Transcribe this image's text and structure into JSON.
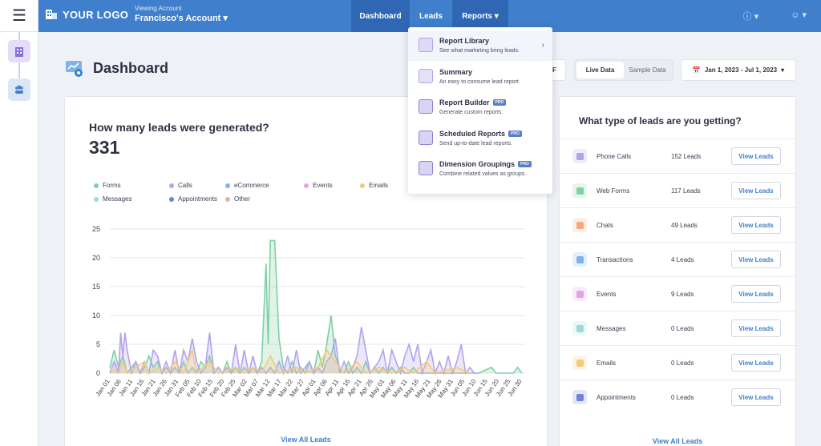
{
  "topbar": {
    "logo_text": "YOUR LOGO",
    "viewing_label": "Viewing Account",
    "account_name": "Francisco's Account",
    "nav": {
      "dashboard": "Dashboard",
      "leads": "Leads",
      "reports": "Reports"
    }
  },
  "page": {
    "title": "Dashboard",
    "pdf_suffix": "F",
    "toggle": {
      "live": "Live Data",
      "sample": "Sample Data"
    },
    "date_range": "Jan 1, 2023 - Jul 1, 2023"
  },
  "chart_card": {
    "question": "How many leads were generated?",
    "total": "331",
    "view_all": "View All Leads"
  },
  "legend": [
    {
      "label": "Forms",
      "color": "#7fd1a4"
    },
    {
      "label": "Calls",
      "color": "#b3a2ec"
    },
    {
      "label": "eCommerce",
      "color": "#7fb3ee"
    },
    {
      "label": "Events",
      "color": "#e3a2e5"
    },
    {
      "label": "Emails",
      "color": "#f5c97a"
    },
    {
      "label": "Messages",
      "color": "#9bdbd6"
    },
    {
      "label": "Appointments",
      "color": "#6f82d8"
    },
    {
      "label": "Other",
      "color": "#d8b9a8"
    }
  ],
  "chart_data": {
    "type": "area",
    "ylim": [
      0,
      25
    ],
    "yticks": [
      0,
      5,
      10,
      15,
      20,
      25
    ],
    "xticks": [
      "Jan 01",
      "Jan 06",
      "Jan 11",
      "Jan 16",
      "Jan 21",
      "Jan 26",
      "Jan 31",
      "Feb 05",
      "Feb 10",
      "Feb 15",
      "Feb 20",
      "Feb 25",
      "Mar 02",
      "Mar 07",
      "Mar 12",
      "Mar 17",
      "Mar 22",
      "Mar 27",
      "Apr 01",
      "Apr 06",
      "Apr 11",
      "Apr 16",
      "Apr 21",
      "Apr 26",
      "May 01",
      "May 06",
      "May 11",
      "May 16",
      "May 21",
      "May 26",
      "May 31",
      "Jun 05",
      "Jun 10",
      "Jun 15",
      "Jun 20",
      "Jun 25",
      "Jun 30"
    ],
    "series": [
      {
        "name": "Forms",
        "color": "#7fd1a4",
        "points": [
          [
            0,
            1
          ],
          [
            2,
            4
          ],
          [
            4,
            1
          ],
          [
            6,
            3
          ],
          [
            8,
            0
          ],
          [
            10,
            1
          ],
          [
            12,
            2
          ],
          [
            14,
            0
          ],
          [
            16,
            1
          ],
          [
            18,
            3
          ],
          [
            20,
            1
          ],
          [
            22,
            2
          ],
          [
            24,
            0
          ],
          [
            26,
            1
          ],
          [
            28,
            0
          ],
          [
            30,
            1
          ],
          [
            32,
            0
          ],
          [
            34,
            2
          ],
          [
            36,
            0
          ],
          [
            38,
            1
          ],
          [
            40,
            0
          ],
          [
            42,
            2
          ],
          [
            44,
            1
          ],
          [
            46,
            3
          ],
          [
            48,
            0
          ],
          [
            50,
            1
          ],
          [
            52,
            0
          ],
          [
            54,
            2
          ],
          [
            56,
            0
          ],
          [
            58,
            1
          ],
          [
            60,
            0
          ],
          [
            62,
            1
          ],
          [
            64,
            0
          ],
          [
            66,
            1
          ],
          [
            68,
            0
          ],
          [
            70,
            2
          ],
          [
            72,
            19
          ],
          [
            73,
            5
          ],
          [
            74,
            23
          ],
          [
            76,
            23
          ],
          [
            78,
            6
          ],
          [
            80,
            1
          ],
          [
            82,
            0
          ],
          [
            84,
            2
          ],
          [
            86,
            0
          ],
          [
            88,
            1
          ],
          [
            90,
            0
          ],
          [
            92,
            2
          ],
          [
            94,
            0
          ],
          [
            96,
            4
          ],
          [
            98,
            1
          ],
          [
            100,
            5
          ],
          [
            102,
            10
          ],
          [
            104,
            3
          ],
          [
            106,
            1
          ],
          [
            108,
            0
          ],
          [
            110,
            2
          ],
          [
            112,
            0
          ],
          [
            114,
            1
          ],
          [
            116,
            0
          ],
          [
            118,
            2
          ],
          [
            120,
            0
          ],
          [
            122,
            1
          ],
          [
            124,
            0
          ],
          [
            126,
            1
          ],
          [
            128,
            0
          ],
          [
            130,
            1
          ],
          [
            132,
            0
          ],
          [
            134,
            1
          ],
          [
            136,
            0
          ],
          [
            138,
            0
          ],
          [
            140,
            1
          ],
          [
            142,
            0
          ],
          [
            150,
            0
          ],
          [
            160,
            0
          ],
          [
            170,
            0
          ],
          [
            176,
            1
          ],
          [
            178,
            0
          ],
          [
            186,
            0
          ],
          [
            188,
            1
          ],
          [
            190,
            0
          ]
        ]
      },
      {
        "name": "Calls",
        "color": "#b3a2ec",
        "points": [
          [
            0,
            0
          ],
          [
            2,
            2
          ],
          [
            4,
            0
          ],
          [
            5,
            7
          ],
          [
            6,
            3
          ],
          [
            7,
            7
          ],
          [
            8,
            4
          ],
          [
            10,
            0
          ],
          [
            12,
            2
          ],
          [
            14,
            0
          ],
          [
            16,
            2
          ],
          [
            18,
            0
          ],
          [
            20,
            4
          ],
          [
            22,
            3
          ],
          [
            24,
            0
          ],
          [
            26,
            2
          ],
          [
            28,
            0
          ],
          [
            30,
            4
          ],
          [
            32,
            0
          ],
          [
            34,
            4
          ],
          [
            36,
            2
          ],
          [
            38,
            6
          ],
          [
            40,
            2
          ],
          [
            42,
            0
          ],
          [
            44,
            1
          ],
          [
            46,
            7
          ],
          [
            48,
            0
          ],
          [
            50,
            1
          ],
          [
            52,
            0
          ],
          [
            54,
            1
          ],
          [
            56,
            0
          ],
          [
            58,
            5
          ],
          [
            60,
            0
          ],
          [
            62,
            4
          ],
          [
            64,
            0
          ],
          [
            66,
            3
          ],
          [
            68,
            0
          ],
          [
            70,
            1
          ],
          [
            72,
            0
          ],
          [
            74,
            1
          ],
          [
            76,
            0
          ],
          [
            78,
            2
          ],
          [
            80,
            0
          ],
          [
            82,
            3
          ],
          [
            84,
            0
          ],
          [
            86,
            4
          ],
          [
            88,
            0
          ],
          [
            90,
            1
          ],
          [
            92,
            2
          ],
          [
            94,
            0
          ],
          [
            96,
            1
          ],
          [
            98,
            0
          ],
          [
            100,
            2
          ],
          [
            102,
            3
          ],
          [
            104,
            6
          ],
          [
            106,
            0
          ],
          [
            108,
            2
          ],
          [
            110,
            0
          ],
          [
            112,
            1
          ],
          [
            114,
            3
          ],
          [
            116,
            8
          ],
          [
            118,
            4
          ],
          [
            120,
            0
          ],
          [
            122,
            1
          ],
          [
            124,
            2
          ],
          [
            126,
            4
          ],
          [
            128,
            0
          ],
          [
            130,
            4
          ],
          [
            132,
            2
          ],
          [
            134,
            0
          ],
          [
            136,
            3
          ],
          [
            138,
            5
          ],
          [
            140,
            2
          ],
          [
            142,
            5
          ],
          [
            144,
            0
          ],
          [
            146,
            2
          ],
          [
            148,
            4
          ],
          [
            150,
            0
          ],
          [
            152,
            2
          ],
          [
            154,
            0
          ],
          [
            156,
            3
          ],
          [
            158,
            0
          ],
          [
            160,
            2
          ],
          [
            162,
            5
          ],
          [
            164,
            0
          ],
          [
            166,
            1
          ],
          [
            168,
            0
          ],
          [
            170,
            0
          ]
        ]
      },
      {
        "name": "Emails",
        "color": "#f5c97a",
        "points": [
          [
            0,
            1
          ],
          [
            4,
            0
          ],
          [
            6,
            2
          ],
          [
            8,
            0
          ],
          [
            12,
            1
          ],
          [
            16,
            2
          ],
          [
            18,
            0
          ],
          [
            22,
            1
          ],
          [
            26,
            0
          ],
          [
            30,
            2
          ],
          [
            34,
            0
          ],
          [
            38,
            4
          ],
          [
            40,
            0
          ],
          [
            46,
            2
          ],
          [
            50,
            0
          ],
          [
            58,
            1
          ],
          [
            62,
            0
          ],
          [
            66,
            1
          ],
          [
            70,
            0
          ],
          [
            74,
            3
          ],
          [
            78,
            0
          ],
          [
            86,
            1
          ],
          [
            90,
            0
          ],
          [
            96,
            1
          ],
          [
            100,
            4
          ],
          [
            104,
            2
          ],
          [
            108,
            0
          ],
          [
            114,
            2
          ],
          [
            118,
            0
          ],
          [
            124,
            1
          ],
          [
            130,
            0
          ],
          [
            136,
            1
          ],
          [
            140,
            0
          ],
          [
            146,
            2
          ],
          [
            150,
            0
          ],
          [
            160,
            1
          ],
          [
            166,
            0
          ]
        ]
      }
    ]
  },
  "reports_menu": [
    {
      "title": "Report Library",
      "desc": "See what marketing bring leads.",
      "pro": "",
      "icon": "report-library-icon"
    },
    {
      "title": "Summary",
      "desc": "An easy to consume lead report.",
      "pro": "",
      "icon": "summary-icon"
    },
    {
      "title": "Report Builder",
      "desc": "Generate custom reports.",
      "pro": "PRO",
      "icon": "report-builder-icon"
    },
    {
      "title": "Scheduled Reports",
      "desc": "Send up-to-date lead reports.",
      "pro": "PRO",
      "icon": "scheduled-reports-icon"
    },
    {
      "title": "Dimension Groupings",
      "desc": "Combine related values as groups.",
      "pro": "PRO",
      "icon": "dimension-groupings-icon"
    }
  ],
  "lead_types": {
    "question": "What type of leads are you getting?",
    "button_label": "View Leads",
    "view_all": "View All Leads",
    "rows": [
      {
        "label": "Phone Calls",
        "count": "152 Leads",
        "icon": "phone-calls-icon",
        "color": "#b3a2ec"
      },
      {
        "label": "Web Forms",
        "count": "117 Leads",
        "icon": "web-forms-icon",
        "color": "#7fd1a4"
      },
      {
        "label": "Chats",
        "count": "49 Leads",
        "icon": "chats-icon",
        "color": "#f5a97a"
      },
      {
        "label": "Transactions",
        "count": "4 Leads",
        "icon": "transactions-icon",
        "color": "#7fb3ee"
      },
      {
        "label": "Events",
        "count": "9 Leads",
        "icon": "events-icon",
        "color": "#e3a2e5"
      },
      {
        "label": "Messages",
        "count": "0 Leads",
        "icon": "messages-icon",
        "color": "#9bdbd6"
      },
      {
        "label": "Emails",
        "count": "0 Leads",
        "icon": "emails-icon",
        "color": "#f5c97a"
      },
      {
        "label": "Appointments",
        "count": "0 Leads",
        "icon": "appointments-icon",
        "color": "#6f82d8"
      }
    ]
  }
}
